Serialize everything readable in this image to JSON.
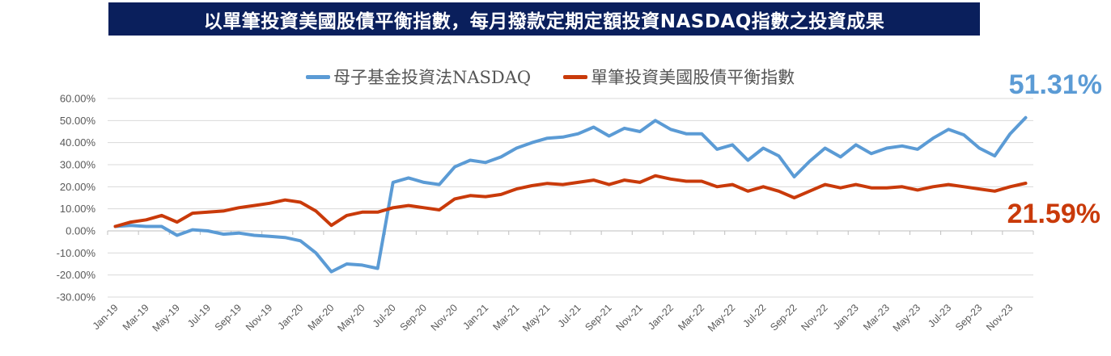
{
  "banner": {
    "title": "以單筆投資美國股債平衡指數，每月撥款定期定額投資NASDAQ指數之投資成果"
  },
  "chart_data": {
    "type": "line",
    "title": "以單筆投資美國股債平衡指數，每月撥款定期定額投資NASDAQ指數之投資成果",
    "xlabel": "",
    "ylabel": "",
    "ylim": [
      -30,
      60
    ],
    "y_tick_step": 10,
    "y_ticks": [
      "60.00%",
      "50.00%",
      "40.00%",
      "30.00%",
      "20.00%",
      "10.00%",
      "0.00%",
      "-10.00%",
      "-20.00%",
      "-30.00%"
    ],
    "grid": true,
    "legend_position": "top-center",
    "x": [
      "Jan-19",
      "Feb-19",
      "Mar-19",
      "Apr-19",
      "May-19",
      "Jun-19",
      "Jul-19",
      "Aug-19",
      "Sep-19",
      "Oct-19",
      "Nov-19",
      "Dec-19",
      "Jan-20",
      "Feb-20",
      "Mar-20",
      "Apr-20",
      "May-20",
      "Jun-20",
      "Jul-20",
      "Aug-20",
      "Sep-20",
      "Oct-20",
      "Nov-20",
      "Dec-20",
      "Jan-21",
      "Feb-21",
      "Mar-21",
      "Apr-21",
      "May-21",
      "Jun-21",
      "Jul-21",
      "Aug-21",
      "Sep-21",
      "Oct-21",
      "Nov-21",
      "Dec-21",
      "Jan-22",
      "Feb-22",
      "Mar-22",
      "Apr-22",
      "May-22",
      "Jun-22",
      "Jul-22",
      "Aug-22",
      "Sep-22",
      "Oct-22",
      "Nov-22",
      "Dec-22",
      "Jan-23",
      "Feb-23",
      "Mar-23",
      "Apr-23",
      "May-23",
      "Jun-23",
      "Jul-23",
      "Aug-23",
      "Sep-23",
      "Oct-23",
      "Nov-23",
      "Dec-23"
    ],
    "x_tick_labels": [
      "Jan-19",
      "Mar-19",
      "May-19",
      "Jul-19",
      "Sep-19",
      "Nov-19",
      "Jan-20",
      "Mar-20",
      "May-20",
      "Jul-20",
      "Sep-20",
      "Nov-20",
      "Jan-21",
      "Mar-21",
      "May-21",
      "Jul-21",
      "Sep-21",
      "Nov-21",
      "Jan-22",
      "Mar-22",
      "May-22",
      "Jul-22",
      "Sep-22",
      "Nov-22",
      "Jan-23",
      "Mar-23",
      "May-23",
      "Jul-23",
      "Sep-23",
      "Nov-23"
    ],
    "series": [
      {
        "name": "母子基金投資法NASDAQ",
        "color": "#5b9bd5",
        "end_label": "51.31%",
        "values": [
          2,
          2.5,
          2,
          2,
          -2,
          0.5,
          0,
          -1.5,
          -1,
          -2,
          -2.5,
          -3,
          -4.5,
          -10,
          -18.5,
          -15,
          -15.5,
          -17,
          22,
          24,
          22,
          21,
          29,
          32,
          31,
          33.5,
          37.5,
          40,
          42,
          42.5,
          44,
          47,
          43,
          46.5,
          45,
          50,
          46,
          44,
          44,
          37,
          39,
          32,
          37.5,
          34,
          24.5,
          31.5,
          37.5,
          33.5,
          39,
          35,
          37.5,
          38.5,
          37,
          42,
          46,
          43.5,
          37.5,
          34,
          44,
          51.31
        ]
      },
      {
        "name": "單筆投資美國股債平衡指數",
        "color": "#c93a0a",
        "end_label": "21.59%",
        "values": [
          2,
          4,
          5,
          7,
          4,
          8,
          8.5,
          9,
          10.5,
          11.5,
          12.5,
          14,
          13,
          9,
          2.5,
          7,
          8.5,
          8.5,
          10.5,
          11.5,
          10.5,
          9.5,
          14.5,
          16,
          15.5,
          16.5,
          19,
          20.5,
          21.5,
          21,
          22,
          23,
          21,
          23,
          22,
          25,
          23.5,
          22.5,
          22.5,
          20,
          21,
          18,
          20,
          18,
          15,
          18,
          21,
          19.5,
          21,
          19.5,
          19.5,
          20,
          18.5,
          20,
          21,
          20,
          19,
          18,
          20,
          21.59
        ]
      }
    ]
  }
}
